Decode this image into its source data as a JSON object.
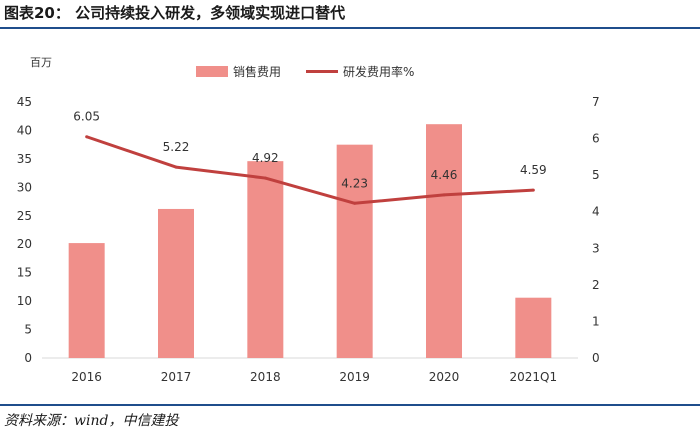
{
  "header": {
    "title": "图表20： 公司持续投入研发，多领域实现进口替代"
  },
  "footer": {
    "source": "资料来源：wind，中信建投"
  },
  "colors": {
    "bar": "#f08f8a",
    "line": "#c0403e",
    "rule": "#1f4e8c"
  },
  "chart_data": {
    "type": "bar+line",
    "categories": [
      "2016",
      "2017",
      "2018",
      "2019",
      "2020",
      "2021Q1"
    ],
    "y_left_unit": "百万",
    "y_left_range": [
      0,
      45
    ],
    "y_left_ticks": [
      "0",
      "5",
      "10",
      "15",
      "20",
      "25",
      "30",
      "35",
      "40",
      "45"
    ],
    "y_right_range": [
      0,
      7
    ],
    "y_right_ticks": [
      "0",
      "1",
      "2",
      "3",
      "4",
      "5",
      "6",
      "7"
    ],
    "legend_position": "top",
    "series": [
      {
        "name": "销售费用",
        "kind": "bar",
        "axis": "left",
        "values": [
          20.2,
          26.2,
          34.6,
          37.5,
          41.1,
          10.6
        ]
      },
      {
        "name": "研发费用率%",
        "kind": "line",
        "axis": "right",
        "values": [
          6.05,
          5.22,
          4.92,
          4.23,
          4.46,
          4.59
        ],
        "labels": [
          "6.05",
          "5.22",
          "4.92",
          "4.23",
          "4.46",
          "4.59"
        ]
      }
    ],
    "grid": false
  }
}
